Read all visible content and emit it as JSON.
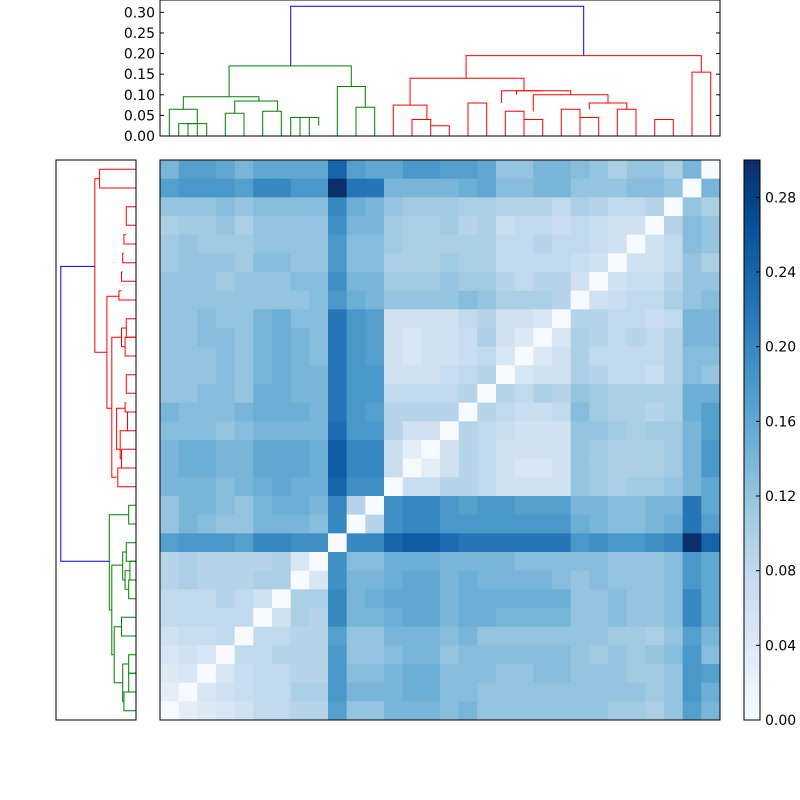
{
  "chart_data": {
    "type": "heatmap",
    "title": "",
    "n": 30,
    "top_dendrogram": {
      "ylim": [
        0,
        0.33
      ],
      "ticks": [
        0.0,
        0.05,
        0.1,
        0.15,
        0.2,
        0.25,
        0.3
      ],
      "tick_labels": [
        "0.00",
        "0.05",
        "0.10",
        "0.15",
        "0.20",
        "0.25",
        "0.30"
      ]
    },
    "colorbar": {
      "colormap": "Blues",
      "range": [
        0.0,
        0.3
      ],
      "ticks": [
        0.0,
        0.04,
        0.08,
        0.12,
        0.16,
        0.2,
        0.24,
        0.28
      ],
      "tick_labels": [
        "0.00",
        "0.04",
        "0.08",
        "0.12",
        "0.16",
        "0.20",
        "0.24",
        "0.28"
      ]
    },
    "cluster_colors": {
      "root": "#0000ff",
      "cluster_a": "#008000",
      "cluster_b": "#ff0000"
    },
    "matrix_rows": [
      [
        0.14,
        0.17,
        0.17,
        0.16,
        0.14,
        0.16,
        0.16,
        0.16,
        0.16,
        0.24,
        0.17,
        0.16,
        0.16,
        0.18,
        0.18,
        0.17,
        0.17,
        0.16,
        0.12,
        0.12,
        0.14,
        0.14,
        0.13,
        0.12,
        0.1,
        0.12,
        0.12,
        0.1,
        0.14,
        0.0
      ],
      [
        0.17,
        0.18,
        0.18,
        0.18,
        0.17,
        0.2,
        0.2,
        0.18,
        0.18,
        0.3,
        0.22,
        0.22,
        0.14,
        0.14,
        0.14,
        0.14,
        0.15,
        0.16,
        0.13,
        0.13,
        0.14,
        0.14,
        0.12,
        0.12,
        0.12,
        0.13,
        0.13,
        0.12,
        0.0,
        0.14
      ],
      [
        0.12,
        0.12,
        0.12,
        0.13,
        0.12,
        0.13,
        0.13,
        0.13,
        0.13,
        0.2,
        0.15,
        0.14,
        0.12,
        0.11,
        0.11,
        0.11,
        0.1,
        0.1,
        0.09,
        0.09,
        0.09,
        0.08,
        0.1,
        0.09,
        0.08,
        0.08,
        0.09,
        0.0,
        0.12,
        0.1
      ],
      [
        0.1,
        0.11,
        0.11,
        0.12,
        0.1,
        0.12,
        0.12,
        0.12,
        0.12,
        0.19,
        0.14,
        0.14,
        0.11,
        0.1,
        0.1,
        0.11,
        0.09,
        0.1,
        0.07,
        0.08,
        0.08,
        0.07,
        0.08,
        0.07,
        0.06,
        0.06,
        0.0,
        0.09,
        0.13,
        0.12
      ],
      [
        0.11,
        0.12,
        0.11,
        0.11,
        0.11,
        0.12,
        0.12,
        0.12,
        0.12,
        0.18,
        0.13,
        0.13,
        0.11,
        0.1,
        0.1,
        0.1,
        0.1,
        0.1,
        0.08,
        0.08,
        0.09,
        0.08,
        0.08,
        0.07,
        0.06,
        0.0,
        0.06,
        0.08,
        0.13,
        0.12
      ],
      [
        0.11,
        0.12,
        0.12,
        0.12,
        0.11,
        0.13,
        0.13,
        0.12,
        0.12,
        0.18,
        0.13,
        0.13,
        0.1,
        0.1,
        0.1,
        0.11,
        0.1,
        0.1,
        0.08,
        0.08,
        0.08,
        0.08,
        0.07,
        0.06,
        0.0,
        0.06,
        0.06,
        0.08,
        0.12,
        0.1
      ],
      [
        0.12,
        0.12,
        0.12,
        0.11,
        0.12,
        0.12,
        0.12,
        0.13,
        0.13,
        0.19,
        0.14,
        0.14,
        0.11,
        0.11,
        0.11,
        0.12,
        0.11,
        0.11,
        0.09,
        0.08,
        0.09,
        0.09,
        0.06,
        0.0,
        0.06,
        0.07,
        0.07,
        0.09,
        0.12,
        0.12
      ],
      [
        0.12,
        0.12,
        0.12,
        0.12,
        0.12,
        0.12,
        0.12,
        0.12,
        0.13,
        0.18,
        0.15,
        0.14,
        0.12,
        0.12,
        0.12,
        0.12,
        0.13,
        0.12,
        0.1,
        0.1,
        0.1,
        0.09,
        0.0,
        0.06,
        0.07,
        0.08,
        0.08,
        0.1,
        0.12,
        0.13
      ],
      [
        0.12,
        0.12,
        0.13,
        0.12,
        0.12,
        0.14,
        0.15,
        0.13,
        0.13,
        0.22,
        0.18,
        0.17,
        0.06,
        0.06,
        0.06,
        0.06,
        0.08,
        0.09,
        0.06,
        0.06,
        0.05,
        0.0,
        0.09,
        0.09,
        0.08,
        0.08,
        0.07,
        0.08,
        0.14,
        0.14
      ],
      [
        0.12,
        0.12,
        0.13,
        0.13,
        0.12,
        0.14,
        0.15,
        0.14,
        0.13,
        0.22,
        0.18,
        0.17,
        0.06,
        0.05,
        0.06,
        0.06,
        0.07,
        0.1,
        0.06,
        0.04,
        0.0,
        0.05,
        0.1,
        0.09,
        0.08,
        0.09,
        0.08,
        0.09,
        0.14,
        0.14
      ],
      [
        0.12,
        0.12,
        0.12,
        0.13,
        0.12,
        0.14,
        0.15,
        0.14,
        0.13,
        0.22,
        0.18,
        0.17,
        0.06,
        0.05,
        0.06,
        0.06,
        0.07,
        0.08,
        0.05,
        0.0,
        0.04,
        0.06,
        0.1,
        0.08,
        0.08,
        0.08,
        0.08,
        0.09,
        0.13,
        0.13
      ],
      [
        0.12,
        0.12,
        0.12,
        0.13,
        0.12,
        0.14,
        0.15,
        0.14,
        0.14,
        0.22,
        0.18,
        0.18,
        0.06,
        0.06,
        0.06,
        0.07,
        0.08,
        0.09,
        0.0,
        0.05,
        0.06,
        0.06,
        0.1,
        0.09,
        0.08,
        0.08,
        0.07,
        0.09,
        0.13,
        0.12
      ],
      [
        0.12,
        0.12,
        0.13,
        0.13,
        0.12,
        0.15,
        0.15,
        0.14,
        0.14,
        0.22,
        0.18,
        0.18,
        0.08,
        0.08,
        0.08,
        0.08,
        0.09,
        0.0,
        0.09,
        0.08,
        0.1,
        0.09,
        0.12,
        0.11,
        0.1,
        0.1,
        0.1,
        0.1,
        0.15,
        0.15
      ],
      [
        0.14,
        0.13,
        0.13,
        0.13,
        0.14,
        0.15,
        0.15,
        0.15,
        0.14,
        0.22,
        0.18,
        0.17,
        0.09,
        0.09,
        0.09,
        0.09,
        0.0,
        0.09,
        0.08,
        0.07,
        0.07,
        0.08,
        0.13,
        0.11,
        0.1,
        0.1,
        0.09,
        0.1,
        0.15,
        0.17
      ],
      [
        0.13,
        0.13,
        0.13,
        0.12,
        0.13,
        0.14,
        0.14,
        0.14,
        0.14,
        0.23,
        0.18,
        0.18,
        0.09,
        0.06,
        0.06,
        0.0,
        0.09,
        0.08,
        0.07,
        0.06,
        0.06,
        0.06,
        0.12,
        0.12,
        0.11,
        0.1,
        0.11,
        0.11,
        0.14,
        0.17
      ],
      [
        0.14,
        0.15,
        0.15,
        0.14,
        0.14,
        0.16,
        0.16,
        0.16,
        0.15,
        0.25,
        0.2,
        0.2,
        0.07,
        0.03,
        0.0,
        0.06,
        0.09,
        0.08,
        0.06,
        0.06,
        0.06,
        0.06,
        0.12,
        0.11,
        0.1,
        0.1,
        0.1,
        0.11,
        0.14,
        0.18
      ],
      [
        0.14,
        0.15,
        0.15,
        0.14,
        0.14,
        0.16,
        0.16,
        0.16,
        0.15,
        0.25,
        0.2,
        0.2,
        0.07,
        0.0,
        0.03,
        0.06,
        0.09,
        0.08,
        0.06,
        0.05,
        0.05,
        0.06,
        0.12,
        0.11,
        0.1,
        0.1,
        0.1,
        0.11,
        0.14,
        0.18
      ],
      [
        0.14,
        0.14,
        0.14,
        0.13,
        0.14,
        0.15,
        0.16,
        0.15,
        0.15,
        0.24,
        0.19,
        0.19,
        0.0,
        0.07,
        0.07,
        0.09,
        0.09,
        0.08,
        0.06,
        0.06,
        0.06,
        0.06,
        0.12,
        0.11,
        0.1,
        0.11,
        0.11,
        0.12,
        0.14,
        0.16
      ],
      [
        0.12,
        0.14,
        0.14,
        0.13,
        0.12,
        0.14,
        0.15,
        0.15,
        0.14,
        0.2,
        0.09,
        0.0,
        0.19,
        0.2,
        0.2,
        0.18,
        0.17,
        0.18,
        0.18,
        0.17,
        0.17,
        0.17,
        0.14,
        0.14,
        0.13,
        0.13,
        0.14,
        0.14,
        0.22,
        0.16
      ],
      [
        0.12,
        0.14,
        0.13,
        0.12,
        0.12,
        0.14,
        0.14,
        0.14,
        0.13,
        0.2,
        0.0,
        0.09,
        0.19,
        0.2,
        0.2,
        0.18,
        0.18,
        0.18,
        0.18,
        0.18,
        0.18,
        0.18,
        0.15,
        0.14,
        0.13,
        0.13,
        0.14,
        0.15,
        0.22,
        0.17
      ],
      [
        0.17,
        0.18,
        0.18,
        0.18,
        0.17,
        0.2,
        0.2,
        0.19,
        0.19,
        0.0,
        0.2,
        0.2,
        0.24,
        0.25,
        0.25,
        0.23,
        0.22,
        0.22,
        0.22,
        0.22,
        0.22,
        0.22,
        0.18,
        0.19,
        0.18,
        0.18,
        0.19,
        0.2,
        0.3,
        0.24
      ],
      [
        0.09,
        0.1,
        0.09,
        0.09,
        0.09,
        0.09,
        0.1,
        0.05,
        0.0,
        0.19,
        0.13,
        0.13,
        0.15,
        0.15,
        0.15,
        0.14,
        0.14,
        0.14,
        0.14,
        0.13,
        0.13,
        0.13,
        0.13,
        0.13,
        0.12,
        0.12,
        0.12,
        0.13,
        0.18,
        0.16
      ],
      [
        0.09,
        0.1,
        0.09,
        0.09,
        0.09,
        0.1,
        0.1,
        0.0,
        0.05,
        0.19,
        0.14,
        0.14,
        0.15,
        0.16,
        0.16,
        0.14,
        0.15,
        0.14,
        0.14,
        0.14,
        0.14,
        0.13,
        0.12,
        0.13,
        0.12,
        0.12,
        0.12,
        0.13,
        0.18,
        0.16
      ],
      [
        0.08,
        0.08,
        0.08,
        0.09,
        0.08,
        0.06,
        0.0,
        0.1,
        0.1,
        0.2,
        0.14,
        0.15,
        0.16,
        0.16,
        0.16,
        0.14,
        0.15,
        0.15,
        0.15,
        0.15,
        0.15,
        0.15,
        0.12,
        0.12,
        0.13,
        0.12,
        0.12,
        0.13,
        0.2,
        0.16
      ],
      [
        0.08,
        0.08,
        0.08,
        0.08,
        0.08,
        0.0,
        0.06,
        0.1,
        0.09,
        0.2,
        0.14,
        0.14,
        0.15,
        0.16,
        0.16,
        0.14,
        0.15,
        0.15,
        0.14,
        0.14,
        0.14,
        0.14,
        0.12,
        0.12,
        0.13,
        0.12,
        0.12,
        0.13,
        0.2,
        0.16
      ],
      [
        0.06,
        0.07,
        0.07,
        0.08,
        0.0,
        0.08,
        0.08,
        0.09,
        0.09,
        0.17,
        0.12,
        0.12,
        0.14,
        0.14,
        0.14,
        0.13,
        0.14,
        0.12,
        0.12,
        0.12,
        0.12,
        0.12,
        0.12,
        0.12,
        0.11,
        0.11,
        0.1,
        0.12,
        0.17,
        0.14
      ],
      [
        0.05,
        0.06,
        0.05,
        0.0,
        0.08,
        0.08,
        0.09,
        0.09,
        0.09,
        0.18,
        0.12,
        0.12,
        0.13,
        0.14,
        0.14,
        0.12,
        0.13,
        0.13,
        0.13,
        0.13,
        0.13,
        0.13,
        0.12,
        0.11,
        0.12,
        0.11,
        0.12,
        0.13,
        0.18,
        0.13
      ],
      [
        0.04,
        0.05,
        0.0,
        0.05,
        0.07,
        0.08,
        0.08,
        0.09,
        0.09,
        0.18,
        0.13,
        0.13,
        0.14,
        0.15,
        0.15,
        0.13,
        0.13,
        0.13,
        0.12,
        0.12,
        0.13,
        0.13,
        0.12,
        0.12,
        0.12,
        0.11,
        0.11,
        0.12,
        0.18,
        0.17
      ],
      [
        0.03,
        0.0,
        0.05,
        0.06,
        0.07,
        0.08,
        0.08,
        0.1,
        0.1,
        0.18,
        0.14,
        0.14,
        0.14,
        0.15,
        0.15,
        0.13,
        0.13,
        0.12,
        0.12,
        0.12,
        0.12,
        0.12,
        0.12,
        0.12,
        0.12,
        0.12,
        0.11,
        0.12,
        0.18,
        0.15
      ],
      [
        0.0,
        0.03,
        0.04,
        0.05,
        0.06,
        0.08,
        0.08,
        0.09,
        0.09,
        0.17,
        0.12,
        0.12,
        0.14,
        0.14,
        0.14,
        0.13,
        0.14,
        0.12,
        0.12,
        0.12,
        0.12,
        0.12,
        0.12,
        0.12,
        0.11,
        0.11,
        0.1,
        0.12,
        0.17,
        0.14
      ]
    ]
  }
}
